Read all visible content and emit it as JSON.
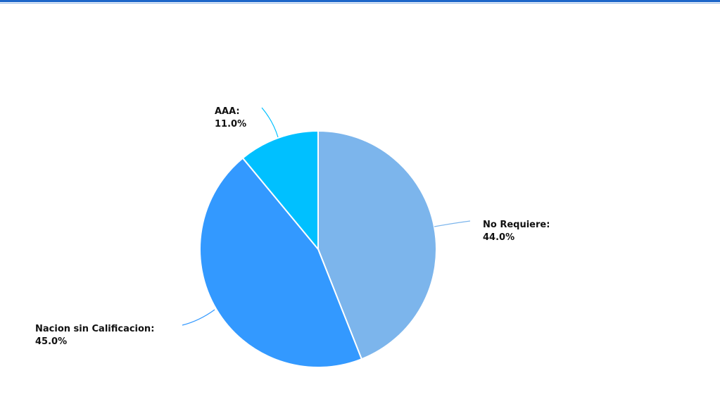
{
  "colors": {
    "frame_border": "#1d66c9",
    "frame_border_light": "#8fb4e6",
    "background": "#ffffff",
    "slice_stroke": "#ffffff",
    "label_text": "#111111"
  },
  "chart_data": {
    "type": "pie",
    "title": "",
    "legend": "none",
    "slices": [
      {
        "label": "No Requiere",
        "value": 44.0,
        "display": "44.0%",
        "color": "#7cb5ec",
        "connector_color": "#7cb5ec"
      },
      {
        "label": "Nacion sin Calificacion",
        "value": 45.0,
        "display": "45.0%",
        "color": "#3399ff",
        "connector_color": "#3399ff"
      },
      {
        "label": "AAA",
        "value": 11.0,
        "display": "11.0%",
        "color": "#00c0ff",
        "connector_color": "#00c0ff"
      }
    ]
  }
}
